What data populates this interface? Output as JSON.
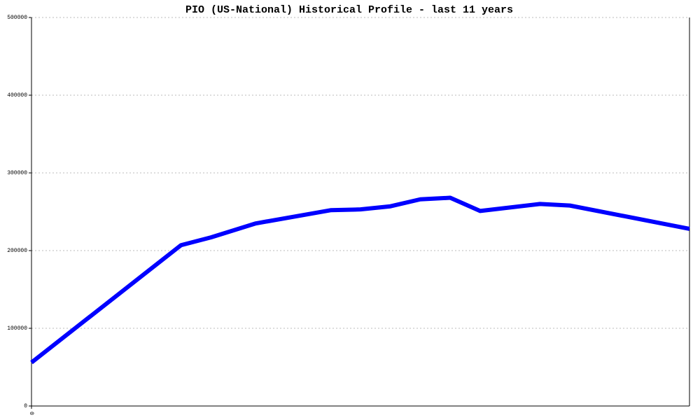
{
  "chart_data": {
    "type": "line",
    "title": "PIO (US-National) Historical Profile - last 11 years",
    "x": [
      0,
      5,
      6,
      7.5,
      10,
      11,
      12,
      13,
      14,
      15,
      17,
      18,
      22
    ],
    "series": [
      {
        "color": "#0000ff",
        "values": [
          56000,
          207000,
          217000,
          235000,
          252000,
          253000,
          257000,
          266000,
          268000,
          251000,
          260000,
          258000,
          228000
        ]
      }
    ],
    "xlim": [
      0,
      22
    ],
    "xticks": [
      0
    ],
    "ylim": [
      0,
      500000
    ],
    "yticks": [
      0,
      100000,
      200000,
      300000,
      400000,
      500000
    ],
    "grid": true
  }
}
